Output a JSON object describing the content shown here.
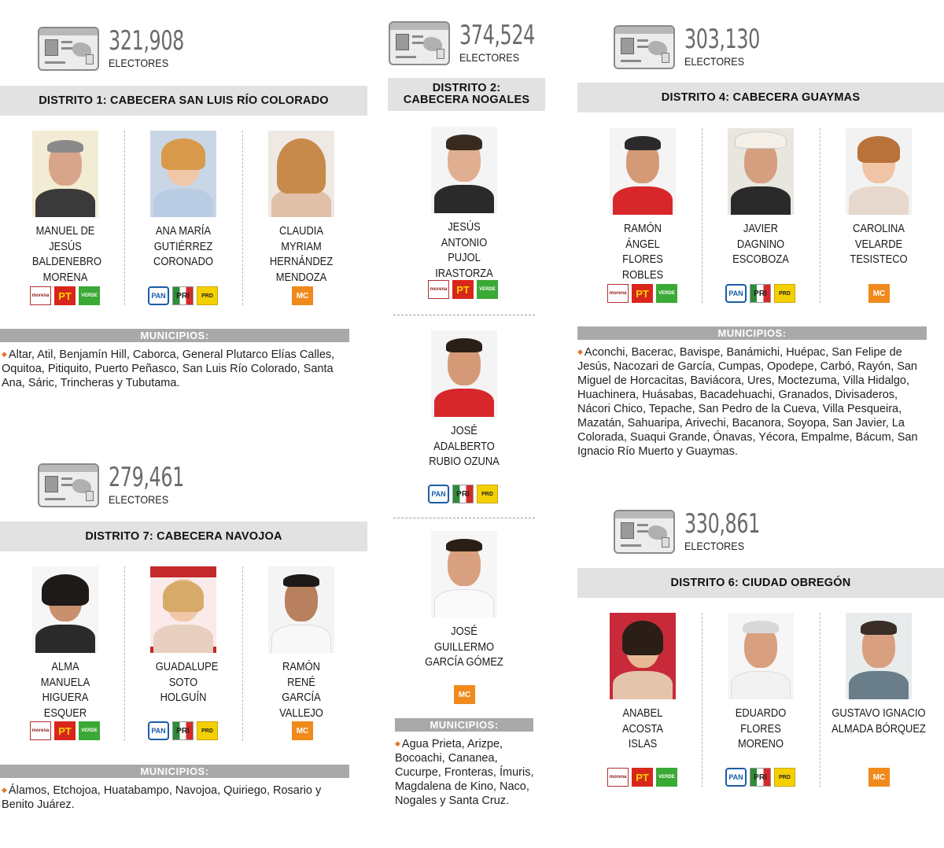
{
  "electores_label": "ELECTORES",
  "municipios_label": "MUNICIPIOS:",
  "icons": {
    "voter_card": "voter-id-card-icon",
    "bullet": "orange-diamond-bullet"
  },
  "parties": {
    "morena": "morena",
    "pt": "PT",
    "verde": "VERDE",
    "pan": "PAN",
    "pri": "PRI",
    "prd": "PRD",
    "mc": "MC"
  },
  "colors": {
    "bar": "#e2e2e2",
    "muni_bar": "#a9a9a9",
    "bullet": "#e8742c",
    "voters_num": "#6a6a6a"
  },
  "d1": {
    "voters": "321,908",
    "title": "DISTRITO 1: CABECERA SAN LUIS RÍO COLORADO",
    "cands": [
      {
        "name": "MANUEL DE JESÚS BALDENEBRO MORENA"
      },
      {
        "name": "ANA MARÍA GUTIÉRREZ CORONADO"
      },
      {
        "name": "CLAUDIA MYRIAM HERNÁNDEZ MENDOZA"
      }
    ],
    "municipios": "Altar, Atil, Benjamín Hill, Caborca, General Plutarco Elías Calles, Oquitoa, Pitiquito, Puerto Peñasco, San Luis Río Colorado, Santa Ana, Sáric, Trincheras y Tubutama."
  },
  "d2": {
    "voters": "374,524",
    "title": "DISTRITO 2: CABECERA NOGALES",
    "cands": [
      {
        "name": "JESÚS ANTONIO PUJOL IRASTORZA"
      },
      {
        "name": "JOSÉ ADALBERTO RUBIO OZUNA"
      },
      {
        "name": "JOSÉ GUILLERMO GARCÍA GÓMEZ"
      }
    ],
    "municipios": "Agua Prieta, Arizpe, Bocoachi, Cananea, Cucurpe, Fronteras, Ímuris, Magdalena de Kino, Naco, Nogales y Santa Cruz."
  },
  "d4": {
    "voters": "303,130",
    "title": "DISTRITO 4: CABECERA GUAYMAS",
    "cands": [
      {
        "name": "RAMÓN ÁNGEL FLORES ROBLES"
      },
      {
        "name": "JAVIER DAGNINO ESCOBOZA"
      },
      {
        "name": "CAROLINA VELARDE TESISTECO"
      }
    ],
    "municipios": "Aconchi, Bacerac, Bavispe, Banámichi, Huépac, San Felipe de Jesús, Nacozari de García, Cumpas, Opodepe, Carbó, Rayón, San Miguel de Horcacitas, Baviácora, Ures, Moctezuma, Villa Hidalgo, Huachinera, Huásabas, Bacadehuachi, Granados, Divisaderos, Nácori Chico, Tepache, San Pedro de la Cueva, Villa Pesqueira, Mazatán, Sahuaripa, Arivechi, Bacanora, Soyopa, San Javier, La Colorada, Suaqui Grande, Ónavas, Yécora, Empalme, Bácum, San Ignacio Río Muerto y Guaymas."
  },
  "d7": {
    "voters": "279,461",
    "title": "DISTRITO 7: CABECERA NAVOJOA",
    "cands": [
      {
        "name": "ALMA MANUELA HIGUERA ESQUER"
      },
      {
        "name": "GUADALUPE SOTO HOLGUÍN"
      },
      {
        "name": "RAMÓN RENÉ GARCÍA VALLEJO"
      }
    ],
    "municipios": "Álamos, Etchojoa, Huatabampo, Navojoa, Quiriego, Rosario y Benito Juárez."
  },
  "d6": {
    "voters": "330,861",
    "title": "DISTRITO 6: CIUDAD OBREGÓN",
    "cands": [
      {
        "name": "ANABEL ACOSTA ISLAS"
      },
      {
        "name": "EDUARDO FLORES MORENO"
      },
      {
        "name": "GUSTAVO IGNACIO ALMADA BÓRQUEZ"
      }
    ]
  }
}
